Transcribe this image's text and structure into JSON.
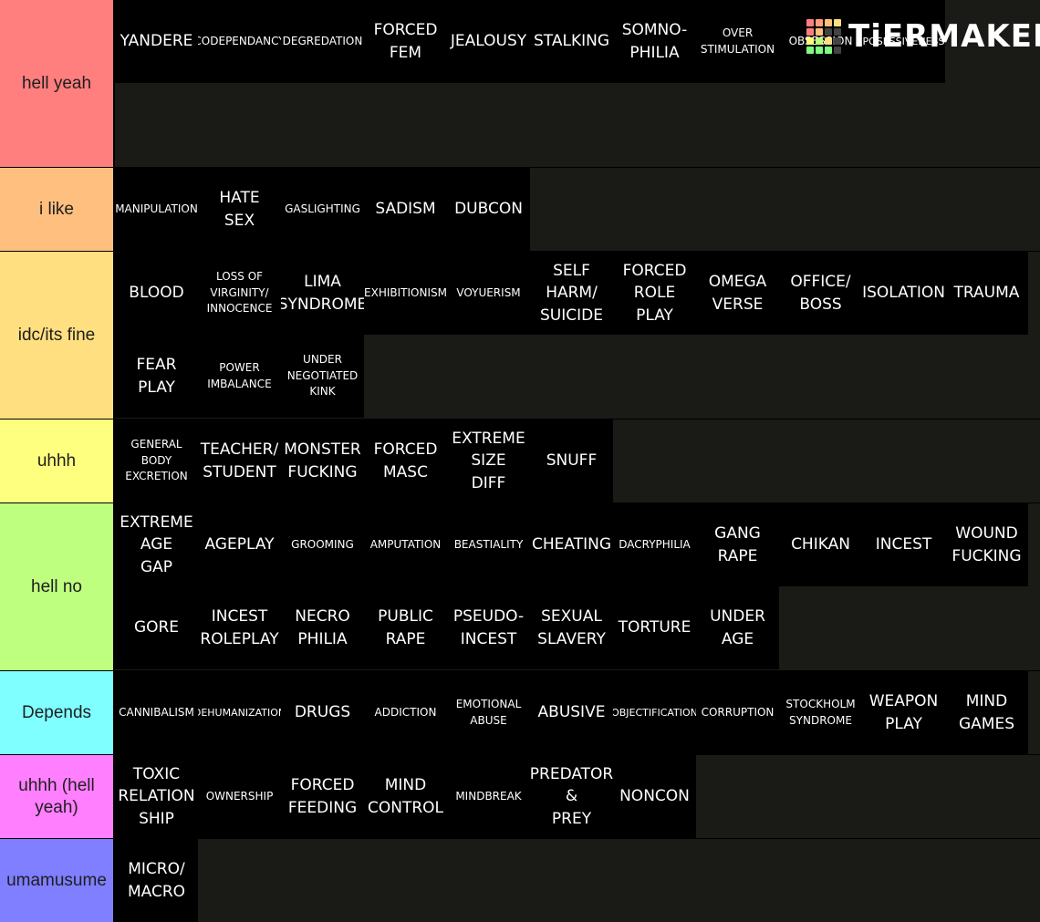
{
  "logo": {
    "text": "TiERMAKER",
    "grid_colors": [
      "#ff7f7f",
      "#ff9f7f",
      "#ffbf7f",
      "#ffdf7f",
      "#ff7f7f",
      "#ffbf7f",
      "#444444",
      "#444444",
      "#ffff7f",
      "#bfff7f",
      "#ffdf7f",
      "#444444",
      "#7fff7f",
      "#7fff7f",
      "#7fff7f",
      "#444444"
    ]
  },
  "tiers": [
    {
      "label": "hell yeah",
      "color": "#ff7f7f",
      "items": [
        "YANDERE",
        "CODEPENDANCY",
        "DEGREDATION",
        "FORCED\nFEM",
        "JEALOUSY",
        "STALKING",
        "SOMNO-\nPHILIA",
        "OVER\nSTIMULATION",
        "OBSESSION",
        "POSESSIVENESS"
      ]
    },
    {
      "label": "i like",
      "color": "#ffbf7f",
      "items": [
        "MANIPULATION",
        "HATE\nSEX",
        "GASLIGHTING",
        "SADISM",
        "DUBCON"
      ]
    },
    {
      "label": "idc/its fine",
      "color": "#ffdf7f",
      "items": [
        "BLOOD",
        "LOSS OF\nVIRGINITY/\nINNOCENCE",
        "LIMA\nSYNDROME",
        "EXHIBITIONISM",
        "VOYUERISM",
        "SELF\nHARM/\nSUICIDE",
        "FORCED\nROLE\nPLAY",
        "OMEGA\nVERSE",
        "OFFICE/\nBOSS",
        "ISOLATION",
        "TRAUMA",
        "FEAR\nPLAY",
        "POWER\nIMBALANCE",
        "UNDER\nNEGOTIATED\nKINK"
      ]
    },
    {
      "label": "uhhh",
      "color": "#ffff7f",
      "items": [
        "GENERAL\nBODY\nEXCRETION",
        "TEACHER/\nSTUDENT",
        "MONSTER\nFUCKING",
        "FORCED\nMASC",
        "EXTREME\nSIZE\nDIFF",
        "SNUFF"
      ]
    },
    {
      "label": "hell no",
      "color": "#bfff7f",
      "items": [
        "EXTREME\nAGE\nGAP",
        "AGEPLAY",
        "GROOMING",
        "AMPUTATION",
        "BEASTIALITY",
        "CHEATING",
        "DACRYPHILIA",
        "GANG\nRAPE",
        "CHIKAN",
        "INCEST",
        "WOUND\nFUCKING",
        "GORE",
        "INCEST\nROLEPLAY",
        "NECRO\nPHILIA",
        "PUBLIC\nRAPE",
        "PSEUDO-\nINCEST",
        "SEXUAL\nSLAVERY",
        "TORTURE",
        "UNDER\nAGE"
      ]
    },
    {
      "label": "Depends",
      "color": "#7fffff",
      "items": [
        "CANNIBALISM",
        "DEHUMANIZATION",
        "DRUGS",
        "ADDICTION",
        "EMOTIONAL\nABUSE",
        "ABUSIVE",
        "OBJECTIFICATION",
        "CORRUPTION",
        "STOCKHOLM\nSYNDROME",
        "WEAPON\nPLAY",
        "MIND\nGAMES"
      ]
    },
    {
      "label": "uhhh (hell yeah)",
      "color": "#ff7fff",
      "items": [
        "TOXIC\nRELATION\nSHIP",
        "OWNERSHIP",
        "FORCED\nFEEDING",
        "MIND\nCONTROL",
        "MINDBREAK",
        "PREDATOR\n&\nPREY",
        "NONCON"
      ]
    },
    {
      "label": "umamusume",
      "color": "#7f7fff",
      "items": [
        "MICRO/\nMACRO"
      ]
    }
  ]
}
